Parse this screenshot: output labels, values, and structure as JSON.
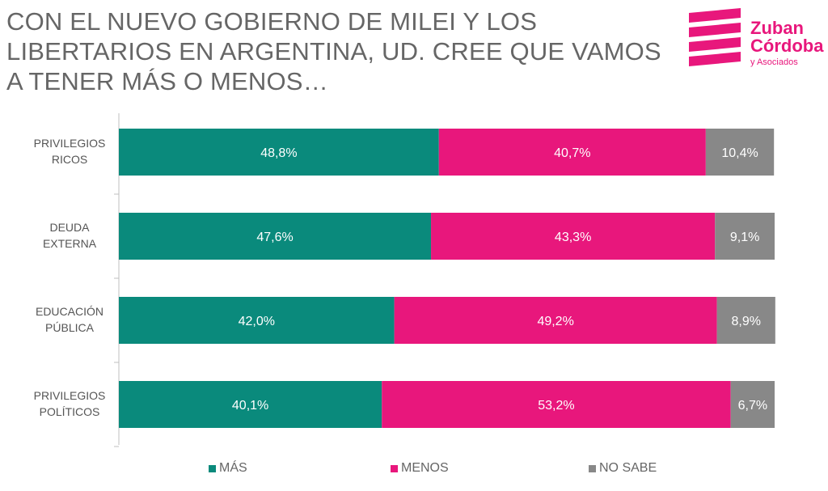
{
  "title": "CON EL NUEVO GOBIERNO DE MILEI Y LOS LIBERTARIOS EN ARGENTINA, UD. CREE QUE VAMOS A TENER MÁS O MENOS…",
  "logo": {
    "line1": "Zuban",
    "line2": "Córdoba",
    "line3": "y Asociados",
    "color": "#e8177c"
  },
  "chart_data": {
    "type": "bar",
    "orientation": "horizontal",
    "stacked": true,
    "title": "CON EL NUEVO GOBIERNO DE MILEI Y LOS LIBERTARIOS EN ARGENTINA, UD. CREE QUE VAMOS A TENER MÁS O MENOS…",
    "categories": [
      [
        "PRIVILEGIOS",
        "RICOS"
      ],
      [
        "DEUDA",
        "EXTERNA"
      ],
      [
        "EDUCACIÓN",
        "PÚBLICA"
      ],
      [
        "PRIVILEGIOS",
        "POLÍTICOS"
      ]
    ],
    "series": [
      {
        "name": "MÁS",
        "color": "#0a8a7c",
        "values": [
          48.8,
          47.6,
          42.0,
          40.1
        ],
        "labels": [
          "48,8%",
          "47,6%",
          "42,0%",
          "40,1%"
        ]
      },
      {
        "name": "MENOS",
        "color": "#e8177c",
        "values": [
          40.7,
          43.3,
          49.2,
          53.2
        ],
        "labels": [
          "40,7%",
          "43,3%",
          "49,2%",
          "53,2%"
        ]
      },
      {
        "name": "NO SABE",
        "color": "#888888",
        "values": [
          10.4,
          9.1,
          8.9,
          6.7
        ],
        "labels": [
          "10,4%",
          "9,1%",
          "8,9%",
          "6,7%"
        ]
      }
    ],
    "xlim": [
      0,
      100
    ],
    "legend_position": "bottom"
  }
}
